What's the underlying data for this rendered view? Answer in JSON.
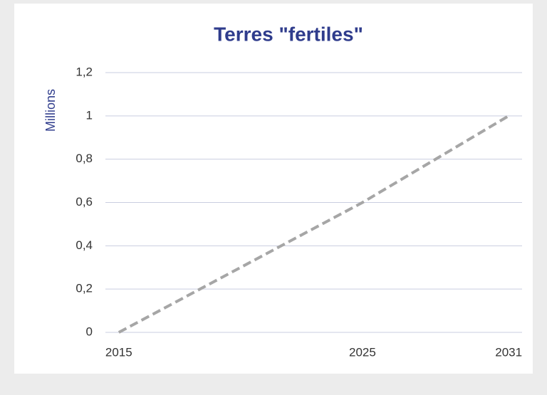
{
  "chart_data": {
    "type": "line",
    "title": "Terres \"fertiles\"",
    "y_label": "Millions",
    "x": [
      2015,
      2025,
      2031
    ],
    "series": [
      {
        "name": "Terres fertiles",
        "color": "#a6a6a6",
        "values": [
          0,
          0.6,
          1
        ]
      }
    ],
    "xlim": [
      2014.45,
      2031.55
    ],
    "xticks": [
      2015,
      2025,
      2031
    ],
    "ylim": [
      0,
      1.2
    ],
    "yticks": [
      0,
      {
        "value": 0.2,
        "label": "0,2"
      },
      {
        "value": 0.4,
        "label": "0,4"
      },
      {
        "value": 0.6,
        "label": "0,6"
      },
      {
        "value": 0.8,
        "label": "0,8"
      },
      1,
      {
        "value": 1.2,
        "label": "1,2"
      }
    ],
    "grid": true,
    "line_style": "dashed"
  }
}
